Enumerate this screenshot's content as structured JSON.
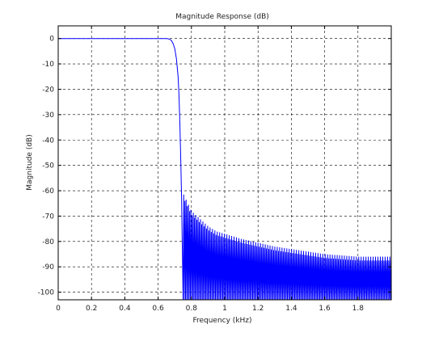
{
  "chart_data": {
    "type": "line",
    "title": "Magnitude Response (dB)",
    "xlabel": "Frequency (kHz)",
    "ylabel": "Magnitude (dB)",
    "xlim": [
      0,
      2.0
    ],
    "ylim": [
      -103,
      5
    ],
    "x_ticks": [
      0,
      0.2,
      0.4,
      0.6,
      0.8,
      1.0,
      1.2,
      1.4,
      1.6,
      1.8
    ],
    "x_tick_labels": [
      "0",
      "0.2",
      "0.4",
      "0.6",
      "0.8",
      "1",
      "1.2",
      "1.4",
      "1.6",
      "1.8"
    ],
    "y_ticks": [
      0,
      -10,
      -20,
      -30,
      -40,
      -50,
      -60,
      -70,
      -80,
      -90,
      -100
    ],
    "y_tick_labels": [
      "0",
      "-10",
      "-20",
      "-30",
      "-40",
      "-50",
      "-60",
      "-70",
      "-80",
      "-90",
      "-100"
    ],
    "grid": true,
    "line_color": "#0000ff",
    "series": [
      {
        "passband": {
          "x": [
            0,
            0.6,
            0.65,
            0.66,
            0.67,
            0.68,
            0.69,
            0.7,
            0.71,
            0.72,
            0.725,
            0.73,
            0.735,
            0.74
          ],
          "y": [
            0,
            0,
            0,
            -0.1,
            -0.3,
            -0.8,
            -2,
            -4,
            -8,
            -15,
            -22,
            -32,
            -45,
            -60
          ]
        },
        "stopband_sidelobe_envelope": {
          "x": [
            0.75,
            0.8,
            0.85,
            0.9,
            0.95,
            1.0,
            1.1,
            1.2,
            1.3,
            1.4,
            1.5,
            1.6,
            1.7,
            1.8,
            1.9,
            2.0
          ],
          "y": [
            -61,
            -68,
            -71,
            -74,
            -76,
            -77,
            -79,
            -80.5,
            -82,
            -83,
            -84,
            -85,
            -85.5,
            -86,
            -86,
            -86
          ]
        },
        "stopband_null_depth_db": -103
      }
    ]
  }
}
